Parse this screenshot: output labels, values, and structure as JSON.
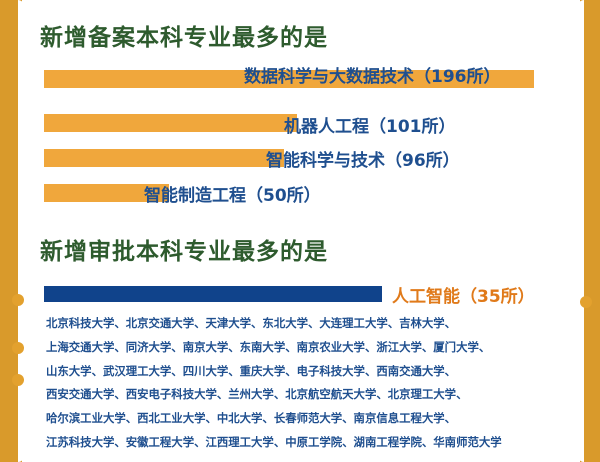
{
  "colors": {
    "frame": "#d99a2b",
    "title": "#2e5b2e",
    "bar_primary": "#f0a73c",
    "bar_ai": "#10438b",
    "label": "#1f4f8f",
    "ai_label": "#e07a1a"
  },
  "section1": {
    "title": "新增备案本科专业最多的是"
  },
  "section2": {
    "title": "新增审批本科专业最多的是"
  },
  "chart_data": [
    {
      "type": "bar",
      "orientation": "horizontal",
      "title": "新增备案本科专业最多的是",
      "categories": [
        "数据科学与大数据技术",
        "机器人工程",
        "智能科学与技术",
        "智能制造工程"
      ],
      "values": [
        196,
        101,
        96,
        50
      ],
      "labels": [
        "数据科学与大数据技术（196所）",
        "机器人工程（101所）",
        "智能科学与技术（96所）",
        "智能制造工程（50所）"
      ],
      "color": "#f0a73c"
    },
    {
      "type": "bar",
      "orientation": "horizontal",
      "title": "新增审批本科专业最多的是",
      "categories": [
        "人工智能"
      ],
      "values": [
        35
      ],
      "labels": [
        "人工智能（35所）"
      ],
      "color": "#10438b"
    }
  ],
  "universities": [
    "北京科技大学、北京交通大学、天津大学、东北大学、大连理工大学、吉林大学、",
    "上海交通大学、同济大学、南京大学、东南大学、南京农业大学、浙江大学、厦门大学、",
    "山东大学、武汉理工大学、四川大学、重庆大学、电子科技大学、西南交通大学、",
    "西安交通大学、西安电子科技大学、兰州大学、北京航空航天大学、北京理工大学、",
    "哈尔滨工业大学、西北工业大学、中北大学、长春师范大学、南京信息工程大学、",
    "江苏科技大学、安徽工程大学、江西理工大学、中原工学院、湖南工程学院、华南师范大学"
  ]
}
